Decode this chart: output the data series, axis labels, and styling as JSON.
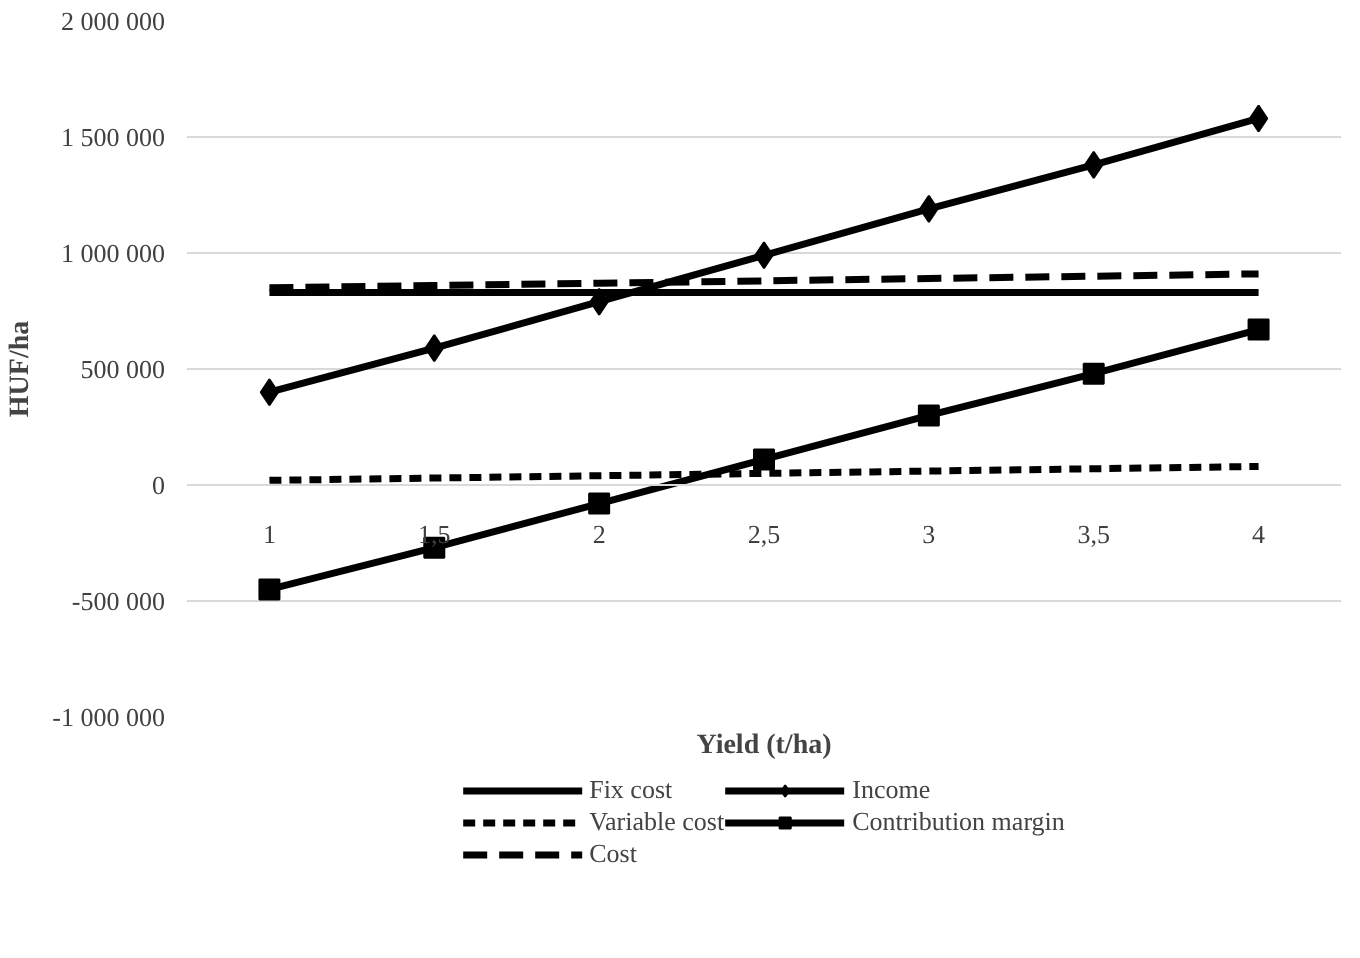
{
  "chart_data": {
    "type": "line",
    "xlabel": "Yield (t/ha)",
    "ylabel": "HUF/ha",
    "categories": [
      "1",
      "1,5",
      "2",
      "2,5",
      "3",
      "3,5",
      "4"
    ],
    "series": [
      {
        "name": "Fix cost",
        "color": "#000000",
        "line_style": "solid",
        "marker": "none",
        "values": [
          830000,
          830000,
          830000,
          830000,
          830000,
          830000,
          830000
        ]
      },
      {
        "name": "Variable cost",
        "color": "#000000",
        "line_style": "dotted",
        "marker": "none",
        "values": [
          20000,
          30000,
          40000,
          50000,
          60000,
          70000,
          80000
        ]
      },
      {
        "name": "Cost",
        "color": "#000000",
        "line_style": "dashed",
        "marker": "none",
        "values": [
          850000,
          860000,
          870000,
          880000,
          890000,
          900000,
          910000
        ]
      },
      {
        "name": "Income",
        "color": "#000000",
        "line_style": "solid",
        "marker": "diamond",
        "values": [
          400000,
          590000,
          790000,
          990000,
          1190000,
          1380000,
          1580000
        ]
      },
      {
        "name": "Contribution margin",
        "color": "#000000",
        "line_style": "solid",
        "marker": "square",
        "values": [
          -450000,
          -270000,
          -80000,
          110000,
          300000,
          480000,
          670000
        ]
      }
    ],
    "ylim": [
      -1000000,
      2000000
    ],
    "yticks": [
      {
        "value": -1000000,
        "label": "-1 000 000"
      },
      {
        "value": -500000,
        "label": "-500 000"
      },
      0,
      {
        "value": 500000,
        "label": "500 000"
      },
      {
        "value": 1000000,
        "label": "1 000 000"
      },
      {
        "value": 1500000,
        "label": "1 500 000"
      },
      {
        "value": 2000000,
        "label": "2 000 000"
      }
    ],
    "grid": "y",
    "legend": "bottom"
  }
}
